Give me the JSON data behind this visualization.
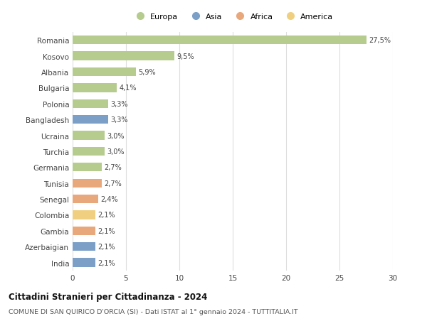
{
  "countries": [
    "Romania",
    "Kosovo",
    "Albania",
    "Bulgaria",
    "Polonia",
    "Bangladesh",
    "Ucraina",
    "Turchia",
    "Germania",
    "Tunisia",
    "Senegal",
    "Colombia",
    "Gambia",
    "Azerbaigian",
    "India"
  ],
  "values": [
    27.5,
    9.5,
    5.9,
    4.1,
    3.3,
    3.3,
    3.0,
    3.0,
    2.7,
    2.7,
    2.4,
    2.1,
    2.1,
    2.1,
    2.1
  ],
  "labels": [
    "27,5%",
    "9,5%",
    "5,9%",
    "4,1%",
    "3,3%",
    "3,3%",
    "3,0%",
    "3,0%",
    "2,7%",
    "2,7%",
    "2,4%",
    "2,1%",
    "2,1%",
    "2,1%",
    "2,1%"
  ],
  "continents": [
    "Europa",
    "Europa",
    "Europa",
    "Europa",
    "Europa",
    "Asia",
    "Europa",
    "Europa",
    "Europa",
    "Africa",
    "Africa",
    "America",
    "Africa",
    "Asia",
    "Asia"
  ],
  "colors": {
    "Europa": "#b5cc8e",
    "Asia": "#7b9fc7",
    "Africa": "#e8a87c",
    "America": "#f0d080"
  },
  "title": "Cittadini Stranieri per Cittadinanza - 2024",
  "subtitle": "COMUNE DI SAN QUIRICO D'ORCIA (SI) - Dati ISTAT al 1° gennaio 2024 - TUTTITALIA.IT",
  "xlim": [
    0,
    30
  ],
  "xticks": [
    0,
    5,
    10,
    15,
    20,
    25,
    30
  ],
  "background_color": "#ffffff",
  "grid_color": "#dddddd",
  "bar_height": 0.55,
  "legend_order": [
    "Europa",
    "Asia",
    "Africa",
    "America"
  ]
}
